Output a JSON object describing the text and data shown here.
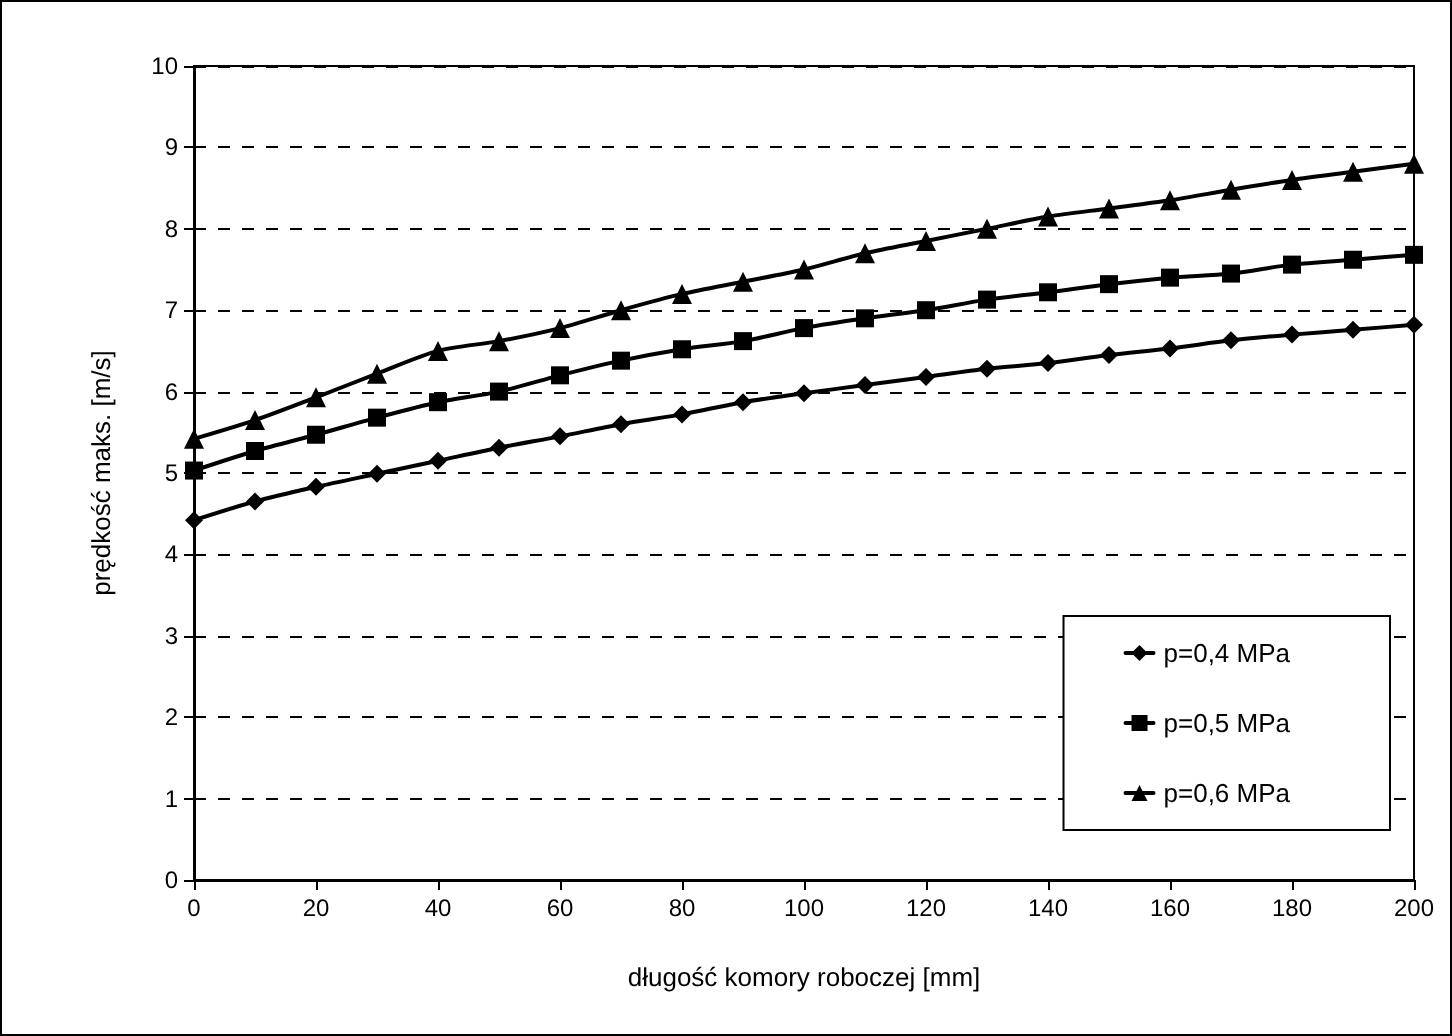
{
  "chart_data": {
    "type": "line",
    "xlabel": "długość komory roboczej [mm]",
    "ylabel": "prędkość maks. [m/s]",
    "x": [
      0,
      10,
      20,
      30,
      40,
      50,
      60,
      70,
      80,
      90,
      100,
      110,
      120,
      130,
      140,
      150,
      160,
      170,
      180,
      190,
      200
    ],
    "xlim": [
      0,
      200
    ],
    "xticks": [
      0,
      20,
      40,
      60,
      80,
      100,
      120,
      140,
      160,
      180,
      200
    ],
    "ylim": [
      0,
      10
    ],
    "yticks": [
      0,
      1,
      2,
      3,
      4,
      5,
      6,
      7,
      8,
      9,
      10
    ],
    "grid": "y",
    "legend": "bottom right",
    "line_style": "solid",
    "series": [
      {
        "name": "p=0,4 MPa",
        "color": "#000000",
        "marker": "diamond",
        "values": [
          4.42,
          4.65,
          4.83,
          4.99,
          5.15,
          5.31,
          5.45,
          5.6,
          5.72,
          5.87,
          5.98,
          6.08,
          6.18,
          6.28,
          6.35,
          6.45,
          6.53,
          6.63,
          6.7,
          6.76,
          6.82
        ]
      },
      {
        "name": "p=0,5 MPa",
        "color": "#000000",
        "marker": "square",
        "values": [
          5.03,
          5.27,
          5.47,
          5.68,
          5.87,
          6.0,
          6.2,
          6.38,
          6.52,
          6.62,
          6.78,
          6.9,
          7.0,
          7.13,
          7.22,
          7.32,
          7.4,
          7.45,
          7.56,
          7.62,
          7.68
        ]
      },
      {
        "name": "p=0,6 MPa",
        "color": "#000000",
        "marker": "triangle",
        "values": [
          5.42,
          5.65,
          5.93,
          6.22,
          6.5,
          6.62,
          6.78,
          7.0,
          7.2,
          7.35,
          7.5,
          7.7,
          7.85,
          8.0,
          8.15,
          8.25,
          8.35,
          8.48,
          8.6,
          8.7,
          8.8
        ]
      }
    ]
  }
}
